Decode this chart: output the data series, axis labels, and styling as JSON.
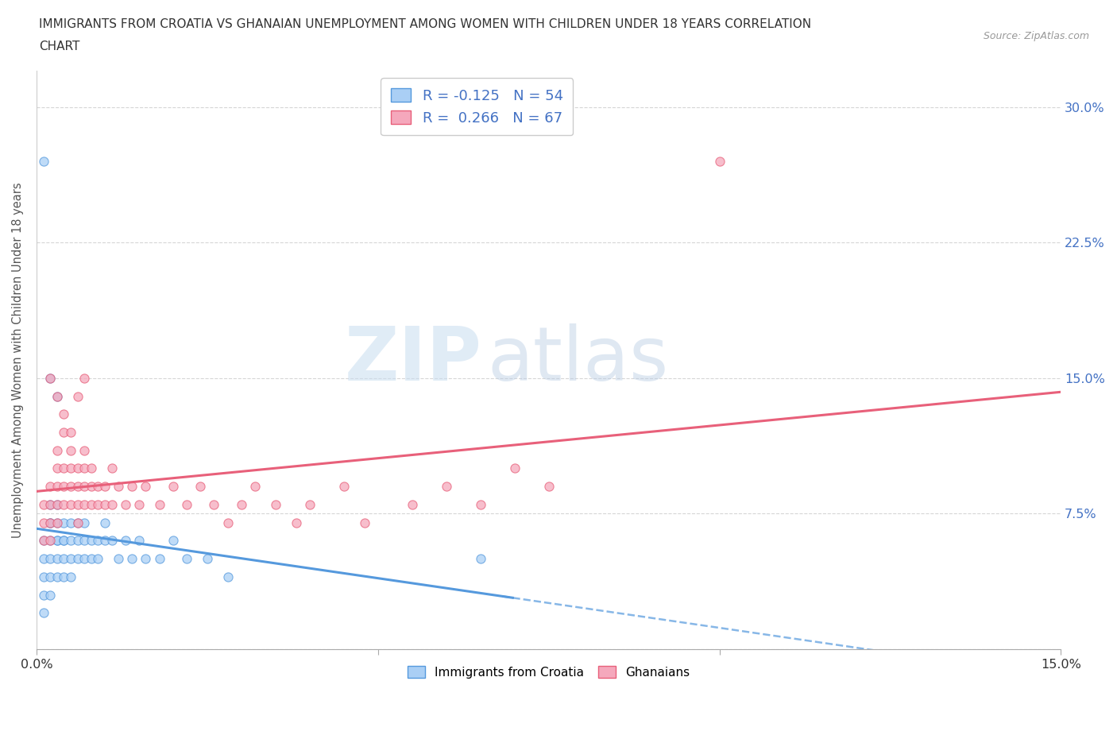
{
  "title_line1": "IMMIGRANTS FROM CROATIA VS GHANAIAN UNEMPLOYMENT AMONG WOMEN WITH CHILDREN UNDER 18 YEARS CORRELATION",
  "title_line2": "CHART",
  "source": "Source: ZipAtlas.com",
  "ylabel": "Unemployment Among Women with Children Under 18 years",
  "xlim": [
    0.0,
    0.15
  ],
  "ylim": [
    0.0,
    0.32
  ],
  "xticks": [
    0.0,
    0.05,
    0.1,
    0.15
  ],
  "xtick_labels": [
    "0.0%",
    "",
    "",
    "15.0%"
  ],
  "ytick_labels": [
    "",
    "7.5%",
    "15.0%",
    "22.5%",
    "30.0%"
  ],
  "yticks": [
    0.0,
    0.075,
    0.15,
    0.225,
    0.3
  ],
  "r_croatia": -0.125,
  "n_croatia": 54,
  "r_ghana": 0.266,
  "n_ghana": 67,
  "color_croatia": "#aacff5",
  "color_ghana": "#f5a8bc",
  "line_color_croatia": "#5599dd",
  "line_color_ghana": "#e8607a",
  "watermark_zip": "ZIP",
  "watermark_atlas": "atlas",
  "legend_label_croatia": "Immigrants from Croatia",
  "legend_label_ghana": "Ghanaians",
  "croatia_x": [
    0.001,
    0.001,
    0.001,
    0.001,
    0.001,
    0.002,
    0.002,
    0.002,
    0.002,
    0.002,
    0.002,
    0.002,
    0.003,
    0.003,
    0.003,
    0.003,
    0.003,
    0.003,
    0.004,
    0.004,
    0.004,
    0.004,
    0.004,
    0.005,
    0.005,
    0.005,
    0.005,
    0.006,
    0.006,
    0.006,
    0.007,
    0.007,
    0.007,
    0.008,
    0.008,
    0.009,
    0.009,
    0.01,
    0.01,
    0.011,
    0.012,
    0.013,
    0.014,
    0.015,
    0.016,
    0.018,
    0.02,
    0.022,
    0.025,
    0.028,
    0.001,
    0.002,
    0.065,
    0.003
  ],
  "croatia_y": [
    0.04,
    0.03,
    0.05,
    0.06,
    0.02,
    0.07,
    0.06,
    0.05,
    0.08,
    0.04,
    0.03,
    0.07,
    0.06,
    0.05,
    0.07,
    0.04,
    0.06,
    0.08,
    0.06,
    0.07,
    0.05,
    0.04,
    0.06,
    0.07,
    0.05,
    0.06,
    0.04,
    0.06,
    0.07,
    0.05,
    0.06,
    0.07,
    0.05,
    0.06,
    0.05,
    0.06,
    0.05,
    0.06,
    0.07,
    0.06,
    0.05,
    0.06,
    0.05,
    0.06,
    0.05,
    0.05,
    0.06,
    0.05,
    0.05,
    0.04,
    0.27,
    0.15,
    0.05,
    0.14
  ],
  "ghana_x": [
    0.001,
    0.001,
    0.001,
    0.002,
    0.002,
    0.002,
    0.002,
    0.003,
    0.003,
    0.003,
    0.003,
    0.003,
    0.004,
    0.004,
    0.004,
    0.004,
    0.005,
    0.005,
    0.005,
    0.005,
    0.006,
    0.006,
    0.006,
    0.006,
    0.007,
    0.007,
    0.007,
    0.007,
    0.008,
    0.008,
    0.008,
    0.009,
    0.009,
    0.01,
    0.01,
    0.011,
    0.011,
    0.012,
    0.013,
    0.014,
    0.015,
    0.016,
    0.018,
    0.02,
    0.022,
    0.024,
    0.026,
    0.028,
    0.03,
    0.032,
    0.035,
    0.038,
    0.04,
    0.045,
    0.048,
    0.055,
    0.06,
    0.065,
    0.07,
    0.075,
    0.002,
    0.003,
    0.004,
    0.005,
    0.006,
    0.007,
    0.1
  ],
  "ghana_y": [
    0.07,
    0.06,
    0.08,
    0.07,
    0.08,
    0.06,
    0.09,
    0.08,
    0.1,
    0.09,
    0.11,
    0.07,
    0.09,
    0.1,
    0.08,
    0.12,
    0.09,
    0.08,
    0.1,
    0.11,
    0.08,
    0.09,
    0.1,
    0.07,
    0.09,
    0.1,
    0.08,
    0.11,
    0.09,
    0.08,
    0.1,
    0.09,
    0.08,
    0.08,
    0.09,
    0.08,
    0.1,
    0.09,
    0.08,
    0.09,
    0.08,
    0.09,
    0.08,
    0.09,
    0.08,
    0.09,
    0.08,
    0.07,
    0.08,
    0.09,
    0.08,
    0.07,
    0.08,
    0.09,
    0.07,
    0.08,
    0.09,
    0.08,
    0.1,
    0.09,
    0.15,
    0.14,
    0.13,
    0.12,
    0.14,
    0.15,
    0.27
  ]
}
